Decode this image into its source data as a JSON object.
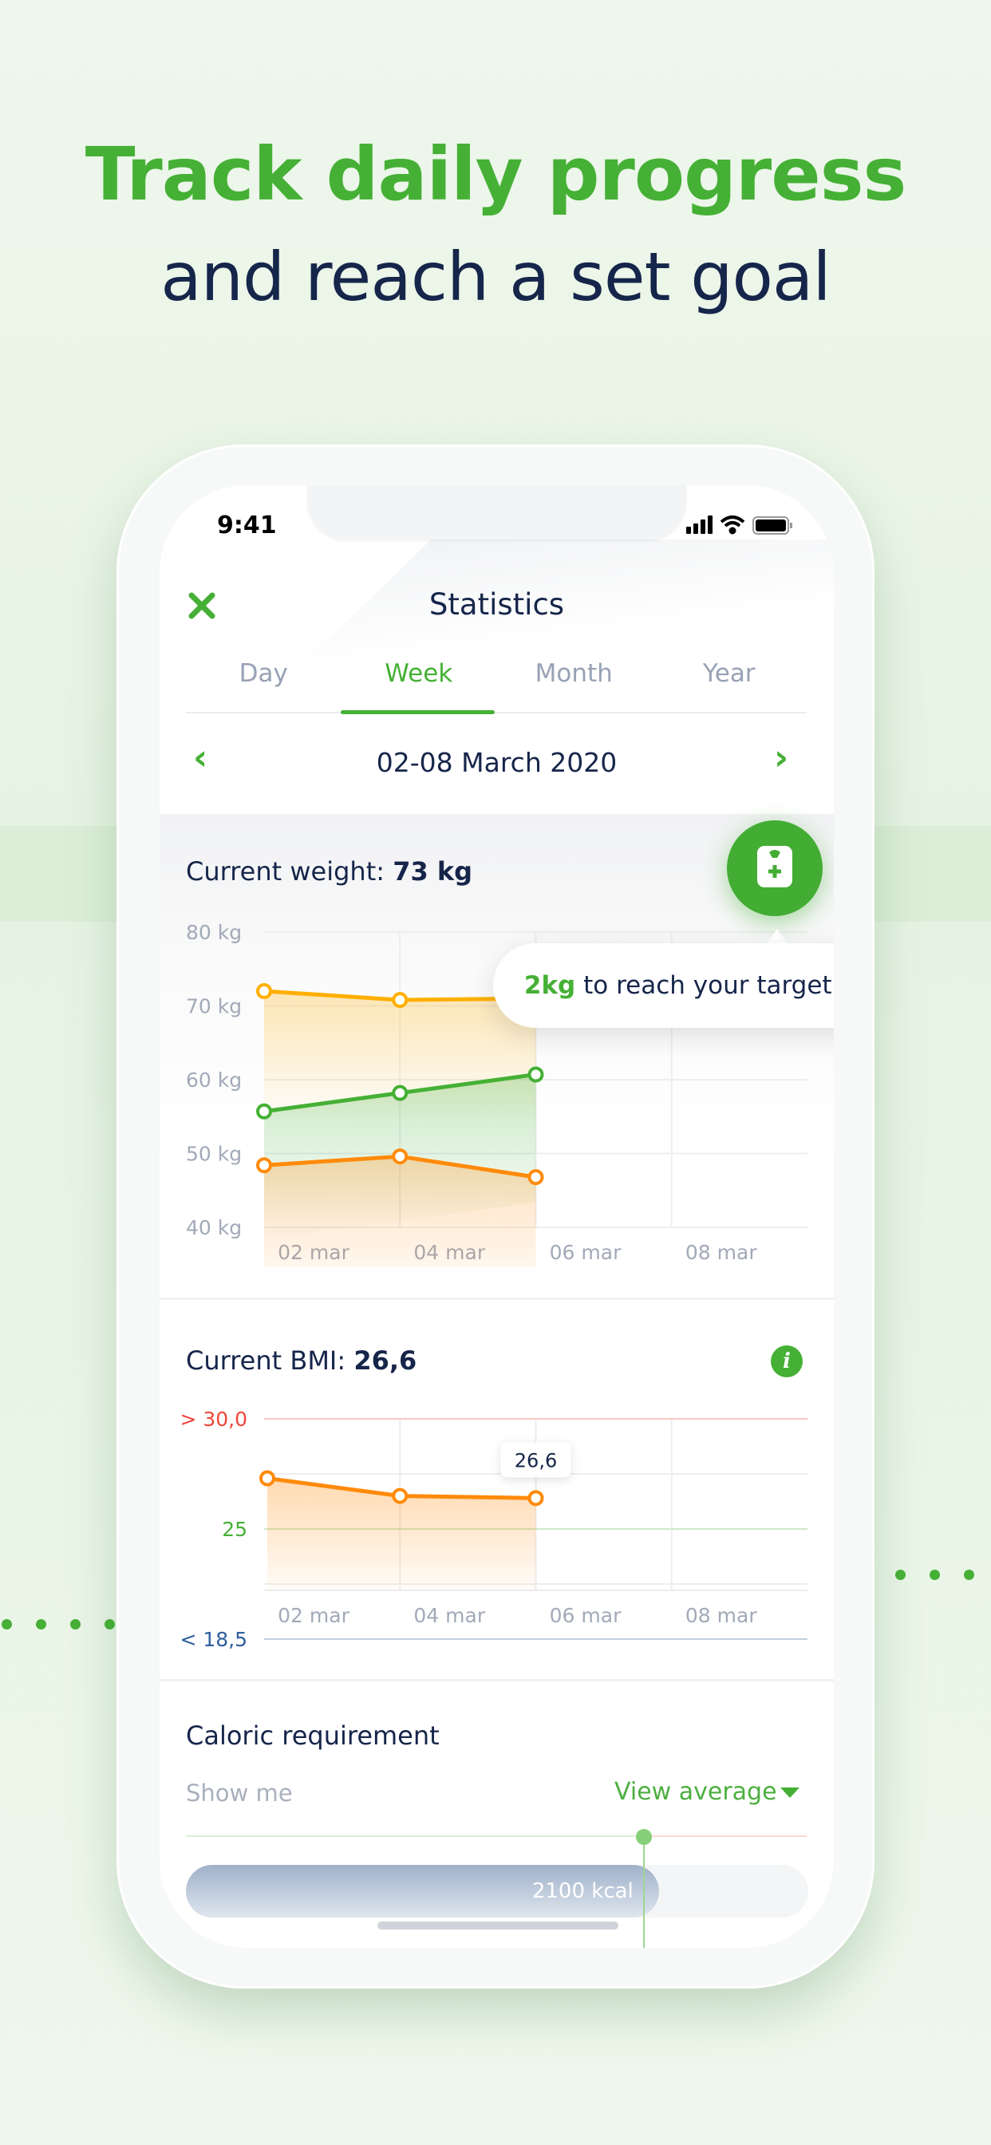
{
  "headline": {
    "line1": "Track daily progress",
    "line2": "and reach a set goal"
  },
  "status_bar": {
    "time": "9:41"
  },
  "header": {
    "title": "Statistics",
    "close_icon": "close-x-icon"
  },
  "tabs": [
    {
      "label": "Day"
    },
    {
      "label": "Week",
      "active": true
    },
    {
      "label": "Month"
    },
    {
      "label": "Year"
    }
  ],
  "date_range": {
    "label": "02-08 March 2020",
    "prev_icon": "chevron-left-icon",
    "next_icon": "chevron-right-icon"
  },
  "weight": {
    "label": "Current weight:",
    "value": "73 kg",
    "fab_icon": "scale-plus-icon"
  },
  "goal_bubble": {
    "amount": "2kg",
    "text": " to reach your target goal!"
  },
  "bmi": {
    "label": "Current BMI:",
    "value": "26,6",
    "tooltip": "26,6",
    "info_icon": "info-icon"
  },
  "caloric": {
    "title": "Caloric requirement",
    "show_me": "Show me",
    "view_select": "View average",
    "bar_value": "2100 kcal",
    "bar_fraction": 0.76
  },
  "colors": {
    "green": "#45b035",
    "yellow": "#ffaf00",
    "orange": "#ff8a0a",
    "navy": "#16254a",
    "red": "#f0453a",
    "blue": "#2d5f9a"
  },
  "chart_data": [
    {
      "type": "line",
      "title": "",
      "y_ticks": [
        "80 kg",
        "70 kg",
        "60 kg",
        "50 kg",
        "40 kg"
      ],
      "ylim": [
        40,
        80
      ],
      "x_ticks": [
        "02 mar",
        "04 mar",
        "06 mar",
        "08 mar"
      ],
      "series": [
        {
          "color": "#ffaf00",
          "values": [
            72,
            70.8,
            71
          ]
        },
        {
          "color": "#45b035",
          "values": [
            55.7,
            58.2,
            60.7
          ]
        },
        {
          "color": "#ff8a0a",
          "values": [
            48.4,
            49.6,
            46.8
          ]
        }
      ],
      "grid": true
    },
    {
      "type": "area",
      "title": "",
      "y_ticks": [
        {
          "label": "> 30,0",
          "value": 30,
          "color": "#f0453a"
        },
        {
          "label": "25",
          "value": 25,
          "color": "#45b035"
        },
        {
          "label": "< 18,5",
          "value": 20,
          "color": "#2d5f9a"
        }
      ],
      "ylim": [
        17.5,
        30
      ],
      "x_ticks": [
        "02 mar",
        "04 mar",
        "06 mar",
        "08 mar"
      ],
      "series": [
        {
          "color": "#ff8a0a",
          "values": [
            27.3,
            26.5,
            26.4
          ]
        }
      ],
      "grid": true
    }
  ]
}
